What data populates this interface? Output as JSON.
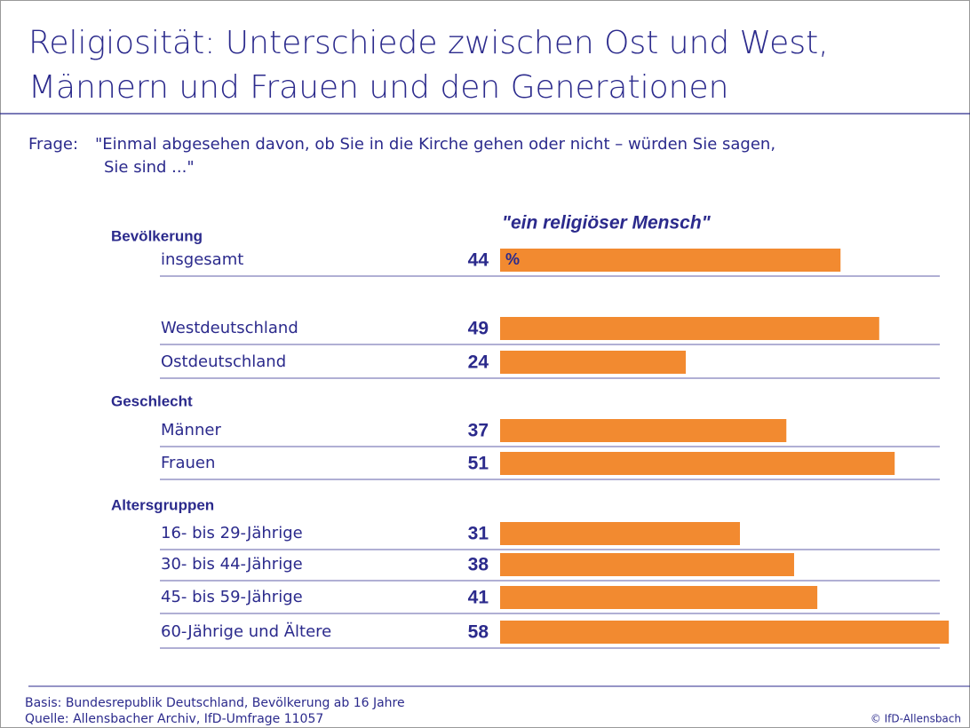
{
  "chart_data": {
    "type": "bar",
    "title": [
      "Religiosität: Unterschiede zwischen Ost und West,",
      "Männern und Frauen und den Generationen"
    ],
    "question_label": "Frage:",
    "question": [
      "\"Einmal abgesehen davon, ob Sie in die Kirche gehen oder nicht – würden Sie sagen,",
      "Sie sind ...\""
    ],
    "series_name": "\"ein religiöser Mensch\"",
    "unit": "%",
    "color": "#f28a30",
    "groups": [
      {
        "name": "Bevölkerung",
        "categories": [
          "insgesamt",
          "Westdeutschland",
          "Ostdeutschland"
        ],
        "values": [
          44,
          49,
          24
        ]
      },
      {
        "name": "Geschlecht",
        "categories": [
          "Männer",
          "Frauen"
        ],
        "values": [
          37,
          51
        ]
      },
      {
        "name": "Altersgruppen",
        "categories": [
          "16- bis 29-Jährige",
          "30- bis 44-Jährige",
          "45- bis 59-Jährige",
          "60-Jährige und Ältere"
        ],
        "values": [
          31,
          38,
          41,
          58
        ]
      }
    ],
    "footnotes": [
      "Basis: Bundesrepublik Deutschland, Bevölkerung ab 16 Jahre",
      "Quelle: Allensbacher Archiv, IfD-Umfrage 11057"
    ],
    "copyright": "© IfD-Allensbach"
  }
}
